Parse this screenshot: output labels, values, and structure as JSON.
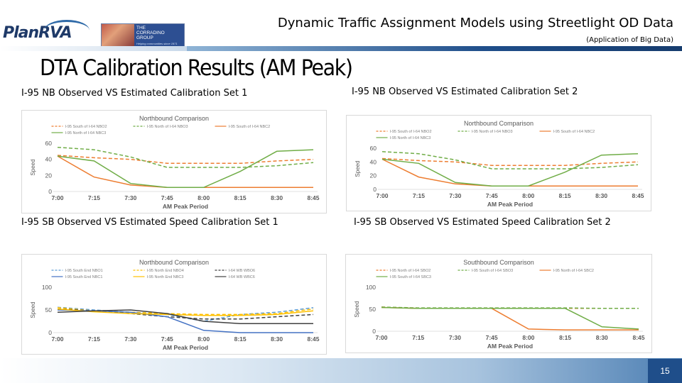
{
  "header": {
    "title": "Dynamic Traffic Assignment Models using Streetlight OD Data",
    "subtitle": "(Application of Big Data)",
    "logo_planrva": "PlanRVA",
    "logo_corradino_line1": "THE",
    "logo_corradino_line2": "CORRADINO GROUP",
    "logo_corradino_tagline": "Helping communities since 1971"
  },
  "slide": {
    "title": "DTA Calibration Results (AM Peak)",
    "number": "15"
  },
  "panels": [
    {
      "label": "I-95 NB Observed VS Estimated Calibration Set 1"
    },
    {
      "label": "I-95 NB Observed VS Estimated Calibration Set 2"
    },
    {
      "label": "I-95 SB Observed VS Estimated Speed Calibration Set 1"
    },
    {
      "label": "I-95 SB Observed VS Estimated Speed Calibration Set 2"
    }
  ],
  "chart_data": [
    {
      "type": "line",
      "title": "Northbound Comparison",
      "xlabel": "AM Peak Period",
      "ylabel": "Speed",
      "categories": [
        "7:00",
        "7:15",
        "7:30",
        "7:45",
        "8:00",
        "8:15",
        "8:30",
        "8:45"
      ],
      "yticks": [
        0,
        20,
        40,
        60
      ],
      "ylim": [
        0,
        60
      ],
      "legend": "top",
      "series": [
        {
          "name": "I-95 South of I-64 NBO2",
          "color": "#ed7d31",
          "dashed": true,
          "values": [
            45,
            42,
            40,
            35,
            35,
            35,
            38,
            40
          ]
        },
        {
          "name": "I-95 North of I-64 NBO3",
          "color": "#70ad47",
          "dashed": true,
          "values": [
            55,
            52,
            43,
            30,
            30,
            30,
            32,
            36
          ]
        },
        {
          "name": "I-95 South of I-64 NBC2",
          "color": "#ed7d31",
          "dashed": false,
          "values": [
            44,
            18,
            8,
            5,
            5,
            5,
            5,
            5
          ]
        },
        {
          "name": "I-95 North of I-64 NBC3",
          "color": "#70ad47",
          "dashed": false,
          "values": [
            44,
            38,
            10,
            5,
            5,
            25,
            50,
            52
          ]
        }
      ]
    },
    {
      "type": "line",
      "title": "Northbound Comparison",
      "xlabel": "AM Peak Period",
      "ylabel": "Speed",
      "categories": [
        "7:00",
        "7:15",
        "7:30",
        "7:45",
        "8:00",
        "8:15",
        "8:30",
        "8:45"
      ],
      "yticks": [
        0,
        20,
        40,
        60
      ],
      "ylim": [
        0,
        60
      ],
      "legend": "top",
      "series": [
        {
          "name": "I-95 South of I-64 NBO2",
          "color": "#ed7d31",
          "dashed": true,
          "values": [
            45,
            42,
            40,
            35,
            35,
            35,
            38,
            40
          ]
        },
        {
          "name": "I-95 North of I-64 NBO3",
          "color": "#70ad47",
          "dashed": true,
          "values": [
            55,
            52,
            43,
            30,
            30,
            30,
            32,
            36
          ]
        },
        {
          "name": "I-95 South of I-64 NBC2",
          "color": "#ed7d31",
          "dashed": false,
          "values": [
            44,
            18,
            8,
            5,
            5,
            5,
            5,
            5
          ]
        },
        {
          "name": "I-95 North of I-64 NBC3",
          "color": "#70ad47",
          "dashed": false,
          "values": [
            44,
            38,
            10,
            5,
            5,
            25,
            50,
            52
          ]
        }
      ]
    },
    {
      "type": "line",
      "title": "Northbound Comparison",
      "xlabel": "AM Peak Period",
      "ylabel": "Speed",
      "categories": [
        "7:00",
        "7:15",
        "7:30",
        "7:45",
        "8:00",
        "8:15",
        "8:30",
        "8:45"
      ],
      "yticks": [
        0,
        50,
        100
      ],
      "ylim": [
        0,
        100
      ],
      "legend": "top",
      "series": [
        {
          "name": "I-95 South End NBO1",
          "color": "#5b9bd5",
          "dashed": true,
          "values": [
            56,
            50,
            45,
            40,
            25,
            40,
            45,
            55
          ]
        },
        {
          "name": "I-95 North End NBO4",
          "color": "#ffc000",
          "dashed": true,
          "values": [
            55,
            48,
            45,
            42,
            40,
            40,
            42,
            52
          ]
        },
        {
          "name": "I-64 WB WBO6",
          "color": "#404040",
          "dashed": true,
          "values": [
            52,
            48,
            42,
            35,
            30,
            30,
            35,
            40
          ]
        },
        {
          "name": "I-95 South End NBC1",
          "color": "#4472c4",
          "dashed": false,
          "values": [
            50,
            48,
            45,
            35,
            5,
            0,
            0,
            0
          ]
        },
        {
          "name": "I-95 North End NBC3",
          "color": "#ffc000",
          "dashed": false,
          "values": [
            52,
            46,
            42,
            40,
            38,
            38,
            40,
            48
          ]
        },
        {
          "name": "I-64 WB WBC6",
          "color": "#404040",
          "dashed": false,
          "values": [
            45,
            48,
            50,
            42,
            25,
            20,
            20,
            20
          ]
        }
      ]
    },
    {
      "type": "line",
      "title": "Southbound Comparison",
      "xlabel": "AM Peak Period",
      "ylabel": "Speed",
      "categories": [
        "7:00",
        "7:15",
        "7:30",
        "7:45",
        "8:00",
        "8:15",
        "8:30",
        "8:45"
      ],
      "yticks": [
        0,
        50,
        100
      ],
      "ylim": [
        0,
        100
      ],
      "legend": "top",
      "series": [
        {
          "name": "I-95 North of I-64 SBO2",
          "color": "#ed7d31",
          "dashed": true,
          "values": [
            55,
            52,
            52,
            52,
            52,
            52,
            52,
            52
          ]
        },
        {
          "name": "I-95 South of I-64 SBO3",
          "color": "#70ad47",
          "dashed": true,
          "values": [
            55,
            53,
            53,
            53,
            53,
            53,
            52,
            52
          ]
        },
        {
          "name": "I-95 North of I-64 SBC2",
          "color": "#ed7d31",
          "dashed": false,
          "values": [
            54,
            52,
            52,
            52,
            5,
            3,
            3,
            3
          ]
        },
        {
          "name": "I-95 South of I-64 SBC3",
          "color": "#70ad47",
          "dashed": false,
          "values": [
            54,
            52,
            52,
            52,
            52,
            52,
            10,
            5
          ]
        }
      ]
    }
  ]
}
